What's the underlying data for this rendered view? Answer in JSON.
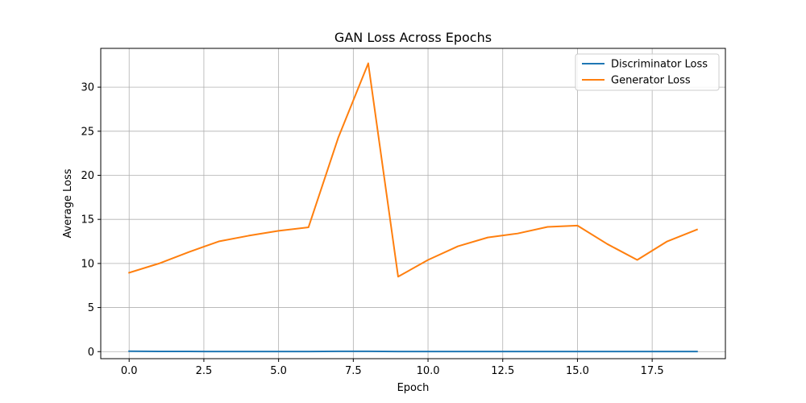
{
  "chart_data": {
    "type": "line",
    "title": "GAN Loss Across Epochs",
    "xlabel": "Epoch",
    "ylabel": "Average Loss",
    "xlim": [
      -0.95,
      19.95
    ],
    "ylim": [
      -0.8,
      34.4
    ],
    "x_ticks": [
      0.0,
      2.5,
      5.0,
      7.5,
      10.0,
      12.5,
      15.0,
      17.5
    ],
    "x_tick_labels": [
      "0.0",
      "2.5",
      "5.0",
      "7.5",
      "10.0",
      "12.5",
      "15.0",
      "17.5"
    ],
    "y_ticks": [
      0,
      5,
      10,
      15,
      20,
      25,
      30
    ],
    "y_tick_labels": [
      "0",
      "5",
      "10",
      "15",
      "20",
      "25",
      "30"
    ],
    "grid": true,
    "legend_position": "top-right",
    "x": [
      0,
      1,
      2,
      3,
      4,
      5,
      6,
      7,
      8,
      9,
      10,
      11,
      12,
      13,
      14,
      15,
      16,
      17,
      18,
      19
    ],
    "series": [
      {
        "name": "Discriminator Loss",
        "color": "#1f77b4",
        "values": [
          0.05,
          0.02,
          0.02,
          0.01,
          0.01,
          0.01,
          0.01,
          0.03,
          0.03,
          0.01,
          0.01,
          0.01,
          0.01,
          0.01,
          0.01,
          0.01,
          0.01,
          0.01,
          0.01,
          0.01
        ]
      },
      {
        "name": "Generator Loss",
        "color": "#ff7f0e",
        "values": [
          8.95,
          10.0,
          11.3,
          12.5,
          13.15,
          13.7,
          14.1,
          24.3,
          32.7,
          8.5,
          10.4,
          11.95,
          12.95,
          13.4,
          14.15,
          14.3,
          12.2,
          10.4,
          12.5,
          13.85
        ]
      }
    ]
  }
}
